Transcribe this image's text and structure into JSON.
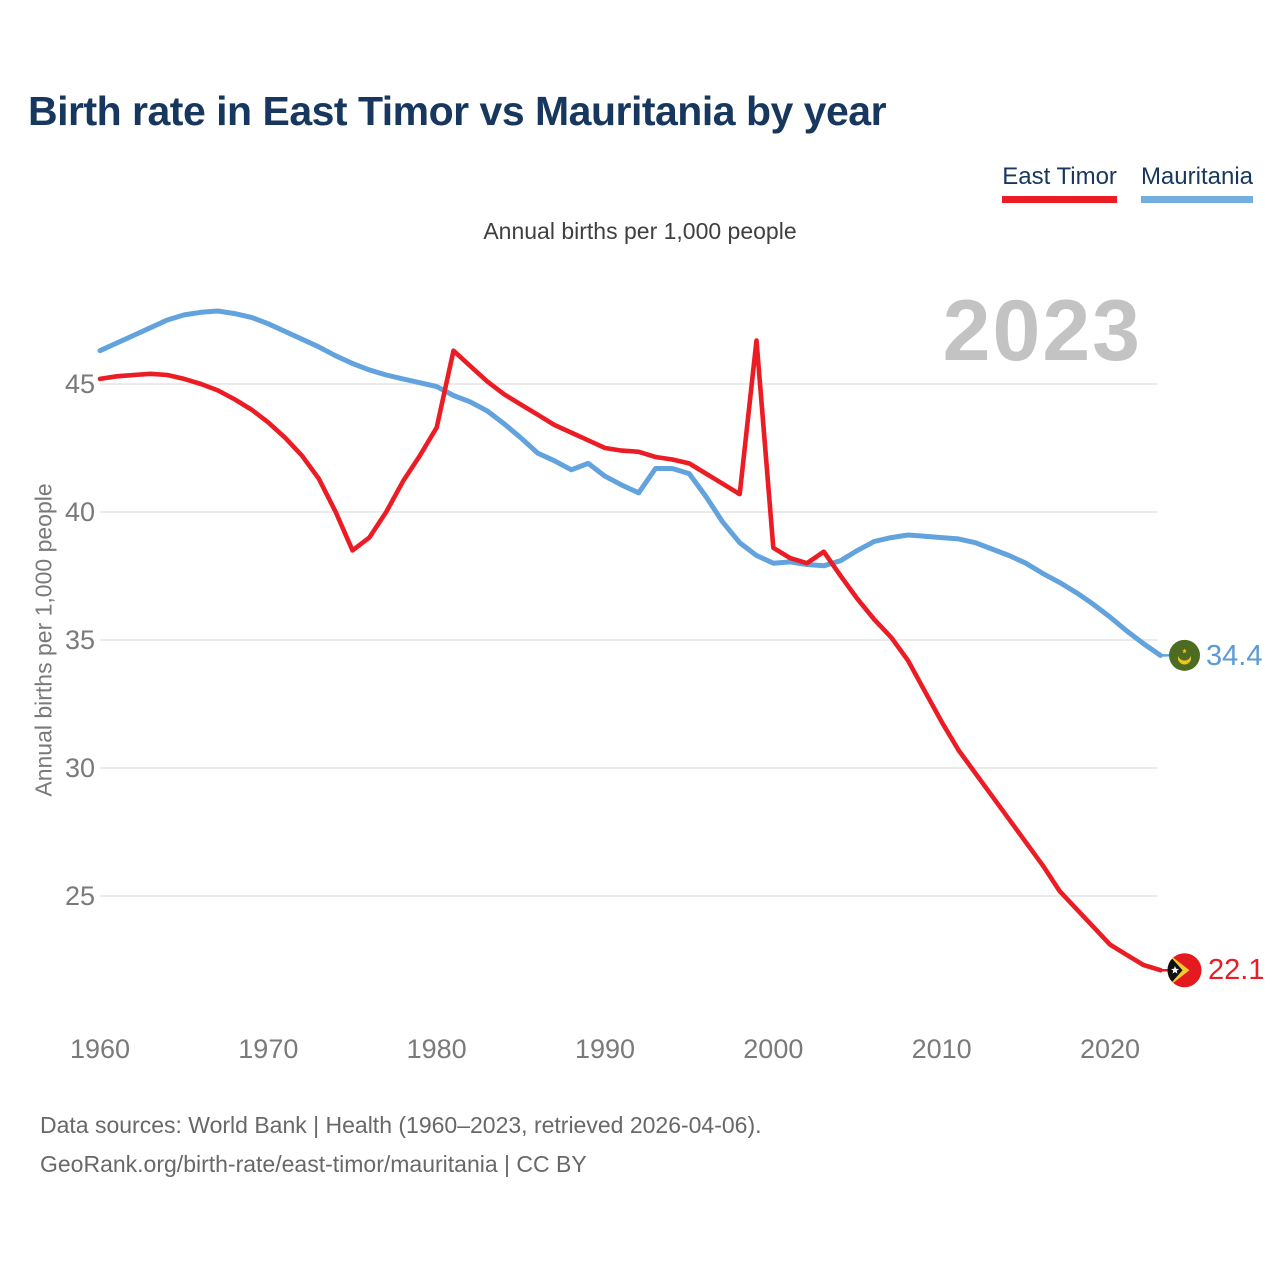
{
  "page": {
    "title": "Birth rate in East Timor vs Mauritania by year",
    "subtitle": "Annual births per 1,000 people",
    "watermark": "2023",
    "footer_line1": "Data sources: World Bank | Health (1960–2023, retrieved 2026-04-06).",
    "footer_line2": "GeoRank.org/birth-rate/east-timor/mauritania | CC BY"
  },
  "legend": {
    "items": [
      {
        "label": "East Timor",
        "color": "#ec1c24"
      },
      {
        "label": "Mauritania",
        "color": "#74aedf"
      }
    ]
  },
  "chart_data": {
    "type": "line",
    "title": "Birth rate in East Timor vs Mauritania by year",
    "ylabel": "Annual births per 1,000 people",
    "xlabel": "",
    "grid": true,
    "legend_position": "top-right",
    "watermark": "2023",
    "xlim": [
      1958.6,
      2027
    ],
    "ylim": [
      20.5,
      48.6
    ],
    "xticks": [
      1960,
      1970,
      1980,
      1990,
      2000,
      2010,
      2020
    ],
    "yticks": [
      25,
      30,
      35,
      40,
      45
    ],
    "x": [
      1960,
      1961,
      1962,
      1963,
      1964,
      1965,
      1966,
      1967,
      1968,
      1969,
      1970,
      1971,
      1972,
      1973,
      1974,
      1975,
      1976,
      1977,
      1978,
      1979,
      1980,
      1981,
      1982,
      1983,
      1984,
      1985,
      1986,
      1987,
      1988,
      1989,
      1990,
      1991,
      1992,
      1993,
      1994,
      1995,
      1996,
      1997,
      1998,
      1999,
      2000,
      2001,
      2002,
      2003,
      2004,
      2005,
      2006,
      2007,
      2008,
      2009,
      2010,
      2011,
      2012,
      2013,
      2014,
      2015,
      2016,
      2017,
      2018,
      2019,
      2020,
      2021,
      2022,
      2023
    ],
    "series": [
      {
        "name": "East Timor",
        "color": "#ec1c24",
        "values": [
          45.2,
          45.3,
          45.35,
          45.4,
          45.35,
          45.2,
          45.0,
          44.75,
          44.4,
          44.0,
          43.5,
          42.9,
          42.2,
          41.3,
          40.0,
          38.5,
          39.0,
          40.0,
          41.2,
          42.2,
          43.3,
          46.3,
          45.7,
          45.1,
          44.6,
          44.2,
          43.8,
          43.4,
          43.1,
          42.8,
          42.5,
          42.4,
          42.35,
          42.15,
          42.05,
          41.9,
          41.5,
          41.1,
          40.7,
          46.7,
          38.6,
          38.2,
          38.0,
          38.45,
          37.5,
          36.6,
          35.8,
          35.1,
          34.2,
          33.0,
          31.8,
          30.7,
          29.8,
          28.9,
          28.0,
          27.1,
          26.2,
          25.2,
          24.5,
          23.8,
          23.1,
          22.7,
          22.3,
          22.1
        ]
      },
      {
        "name": "Mauritania",
        "color": "#62a3dd",
        "values": [
          46.3,
          46.6,
          46.9,
          47.2,
          47.5,
          47.7,
          47.8,
          47.85,
          47.75,
          47.6,
          47.35,
          47.05,
          46.75,
          46.45,
          46.1,
          45.8,
          45.55,
          45.35,
          45.2,
          45.05,
          44.9,
          44.55,
          44.3,
          43.95,
          43.45,
          42.9,
          42.3,
          42.0,
          41.65,
          41.9,
          41.4,
          41.05,
          40.75,
          41.7,
          41.7,
          41.5,
          40.6,
          39.6,
          38.8,
          38.3,
          38.0,
          38.05,
          37.95,
          37.9,
          38.1,
          38.5,
          38.85,
          39.0,
          39.1,
          39.05,
          39.0,
          38.95,
          38.8,
          38.55,
          38.3,
          38.0,
          37.6,
          37.25,
          36.85,
          36.4,
          35.9,
          35.35,
          34.85,
          34.4
        ]
      }
    ],
    "end_labels": [
      {
        "series": "East Timor",
        "text": "22.1",
        "flag": "east-timor"
      },
      {
        "series": "Mauritania",
        "text": "34.4",
        "flag": "mauritania"
      }
    ]
  }
}
